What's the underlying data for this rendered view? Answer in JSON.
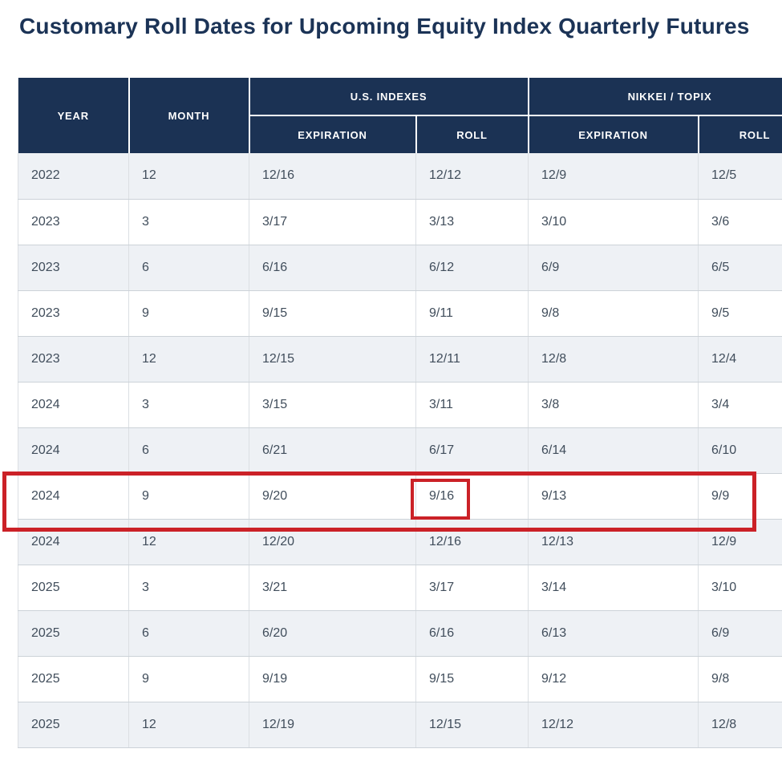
{
  "page": {
    "title": "Customary Roll Dates for Upcoming Equity Index Quarterly Futures"
  },
  "colors": {
    "header_bg": "#1b3254",
    "title_color": "#1b3356",
    "text_color": "#404d5b",
    "row_alt_bg": "#eef1f5",
    "line_h": "#ccd2d8",
    "line_v": "#dbdfe3",
    "highlight_red": "#cb2127"
  },
  "table": {
    "headers": {
      "year": "YEAR",
      "month": "MONTH",
      "us_group": "U.S. INDEXES",
      "nikkei_group": "NIKKEI / TOPIX",
      "us_expiration": "EXPIRATION",
      "us_roll": "ROLL",
      "nikkei_expiration": "EXPIRATION",
      "nikkei_roll": "ROLL"
    },
    "rows": [
      {
        "cells": [
          "2022",
          "12",
          "12/16",
          "12/12",
          "12/9",
          "12/5"
        ]
      },
      {
        "cells": [
          "2023",
          "3",
          "3/17",
          "3/13",
          "3/10",
          "3/6"
        ]
      },
      {
        "cells": [
          "2023",
          "6",
          "6/16",
          "6/12",
          "6/9",
          "6/5"
        ]
      },
      {
        "cells": [
          "2023",
          "9",
          "9/15",
          "9/11",
          "9/8",
          "9/5"
        ]
      },
      {
        "cells": [
          "2023",
          "12",
          "12/15",
          "12/11",
          "12/8",
          "12/4"
        ]
      },
      {
        "cells": [
          "2024",
          "3",
          "3/15",
          "3/11",
          "3/8",
          "3/4"
        ]
      },
      {
        "cells": [
          "2024",
          "6",
          "6/21",
          "6/17",
          "6/14",
          "6/10"
        ]
      },
      {
        "cells": [
          "2024",
          "9",
          "9/20",
          "9/16",
          "9/13",
          "9/9"
        ],
        "highlighted": true,
        "highlight_cell_index": 3
      },
      {
        "cells": [
          "2024",
          "12",
          "12/20",
          "12/16",
          "12/13",
          "12/9"
        ]
      },
      {
        "cells": [
          "2025",
          "3",
          "3/21",
          "3/17",
          "3/14",
          "3/10"
        ]
      },
      {
        "cells": [
          "2025",
          "6",
          "6/20",
          "6/16",
          "6/13",
          "6/9"
        ]
      },
      {
        "cells": [
          "2025",
          "9",
          "9/19",
          "9/15",
          "9/12",
          "9/8"
        ]
      },
      {
        "cells": [
          "2025",
          "12",
          "12/19",
          "12/15",
          "12/12",
          "12/8"
        ]
      }
    ]
  },
  "annotations": {
    "highlighted_row": {
      "year": "2024",
      "month": "9"
    },
    "highlighted_cell_value": "9/16",
    "color": "#cb2127"
  }
}
